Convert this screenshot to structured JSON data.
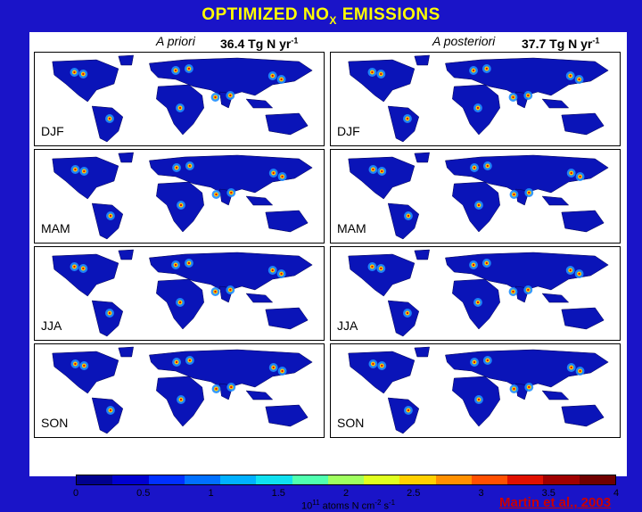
{
  "title": {
    "main": "OPTIMIZED NO",
    "sub": "X",
    "tail": " EMISSIONS"
  },
  "columns": [
    {
      "label": "A priori",
      "total": "36.4 Tg N yr",
      "total_sup": "-1"
    },
    {
      "label": "A posteriori",
      "total": "37.7 Tg N yr",
      "total_sup": "-1"
    }
  ],
  "seasons": [
    "DJF",
    "MAM",
    "JJA",
    "SON"
  ],
  "colorbar": {
    "ticks": [
      "0",
      "0.5",
      "1",
      "1.5",
      "2",
      "2.5",
      "3",
      "3.5",
      "4"
    ],
    "colors": [
      "#00008f",
      "#0000d0",
      "#0030ff",
      "#0070ff",
      "#00b0ff",
      "#10e0f0",
      "#50ffb0",
      "#a0ff60",
      "#e0ff20",
      "#ffd000",
      "#ff9000",
      "#ff5000",
      "#e01000",
      "#a00000",
      "#700000"
    ],
    "unit_base": "10",
    "unit_sup1": "11",
    "unit_mid": " atoms N cm",
    "unit_sup2": "-2",
    "unit_mid2": " s",
    "unit_sup3": "-1"
  },
  "citation": "Martin et al., 2003"
}
